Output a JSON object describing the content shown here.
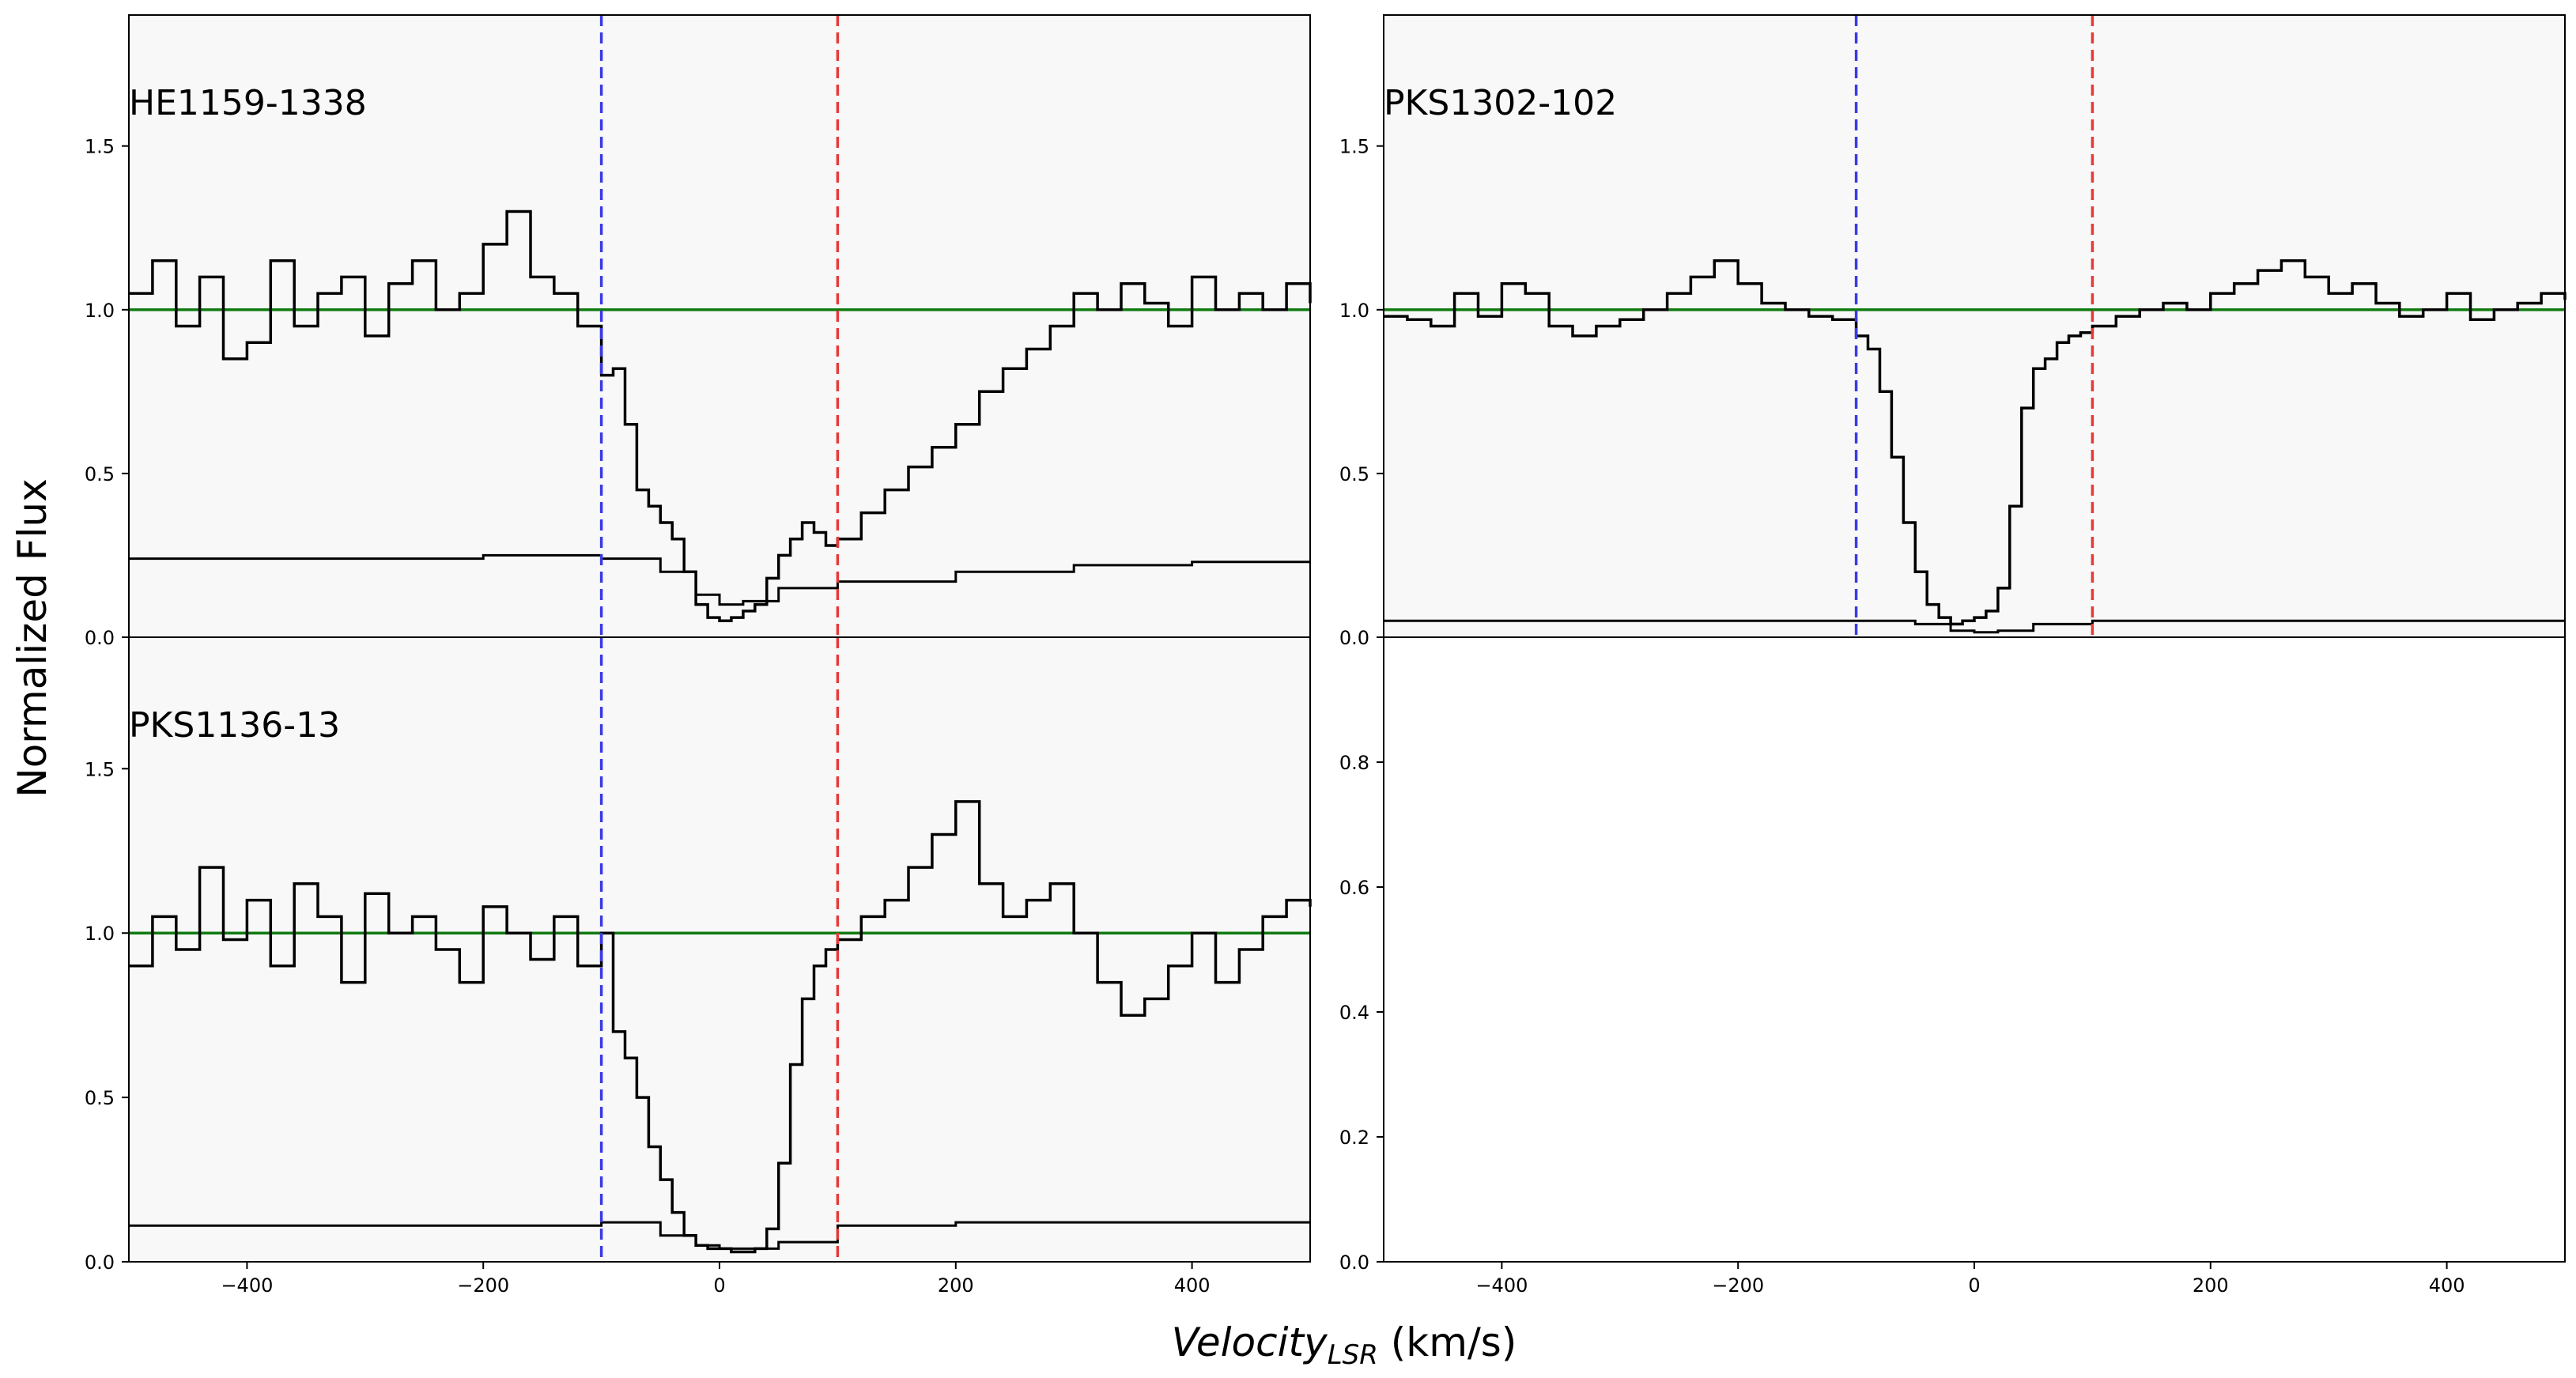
{
  "figure": {
    "ylabel": "Normalized Flux",
    "xlabel_main": "Velocity",
    "xlabel_sub": "LSR",
    "xlabel_units": " (km/s)"
  },
  "colors": {
    "panel_bg": "#f8f8f8",
    "spectrum": "#000000",
    "continuum": "#107a10",
    "vline_min": "#3a3ae6",
    "vline_max": "#e63a3a"
  },
  "chart_data": [
    {
      "type": "line",
      "title": "HE1159-1338",
      "xlim": [
        -500,
        500
      ],
      "ylim": [
        0,
        1.9
      ],
      "yticks": [
        0.0,
        0.5,
        1.0,
        1.5
      ],
      "ytick_labels": [
        "0.0",
        "0.5",
        "1.0",
        "1.5"
      ],
      "xticks": [
        -400,
        -200,
        0,
        200,
        400
      ],
      "xtick_labels": [
        "−400",
        "−200",
        "0",
        "200",
        "400"
      ],
      "continuum": 1.0,
      "vlines": [
        -100,
        100
      ],
      "series": [
        {
          "role": "flux",
          "x": [
            -500,
            -480,
            -460,
            -440,
            -420,
            -400,
            -380,
            -360,
            -340,
            -320,
            -300,
            -280,
            -260,
            -240,
            -220,
            -200,
            -180,
            -160,
            -140,
            -120,
            -100,
            -90,
            -80,
            -70,
            -60,
            -50,
            -40,
            -30,
            -20,
            -10,
            0,
            10,
            20,
            30,
            40,
            50,
            60,
            70,
            80,
            90,
            100,
            120,
            140,
            160,
            180,
            200,
            220,
            240,
            260,
            280,
            300,
            320,
            340,
            360,
            380,
            400,
            420,
            440,
            460,
            480,
            500
          ],
          "y": [
            1.05,
            1.15,
            0.95,
            1.1,
            0.85,
            0.9,
            1.15,
            0.95,
            1.05,
            1.1,
            0.92,
            1.08,
            1.15,
            1.0,
            1.05,
            1.2,
            1.3,
            1.1,
            1.05,
            0.95,
            0.8,
            0.82,
            0.65,
            0.45,
            0.4,
            0.35,
            0.3,
            0.2,
            0.1,
            0.06,
            0.05,
            0.06,
            0.08,
            0.1,
            0.18,
            0.25,
            0.3,
            0.35,
            0.32,
            0.28,
            0.3,
            0.38,
            0.45,
            0.52,
            0.58,
            0.65,
            0.75,
            0.82,
            0.88,
            0.95,
            1.05,
            1.0,
            1.08,
            1.02,
            0.95,
            1.1,
            1.0,
            1.05,
            1.0,
            1.08,
            1.02
          ]
        },
        {
          "role": "error",
          "x": [
            -500,
            -400,
            -300,
            -200,
            -100,
            -50,
            -20,
            0,
            20,
            50,
            100,
            200,
            300,
            400,
            500
          ],
          "y": [
            0.24,
            0.24,
            0.24,
            0.25,
            0.24,
            0.2,
            0.13,
            0.1,
            0.11,
            0.15,
            0.17,
            0.2,
            0.22,
            0.23,
            0.23
          ]
        }
      ]
    },
    {
      "type": "line",
      "title": "PKS1302-102",
      "xlim": [
        -500,
        500
      ],
      "ylim": [
        0,
        1.9
      ],
      "yticks": [
        0.0,
        0.5,
        1.0,
        1.5
      ],
      "ytick_labels": [
        "0.0",
        "0.5",
        "1.0",
        "1.5"
      ],
      "xticks": [],
      "xtick_labels": [],
      "continuum": 1.0,
      "vlines": [
        -100,
        100
      ],
      "series": [
        {
          "role": "flux",
          "x": [
            -500,
            -480,
            -460,
            -440,
            -420,
            -400,
            -380,
            -360,
            -340,
            -320,
            -300,
            -280,
            -260,
            -240,
            -220,
            -200,
            -180,
            -160,
            -140,
            -120,
            -100,
            -90,
            -80,
            -70,
            -60,
            -50,
            -40,
            -30,
            -20,
            -10,
            0,
            10,
            20,
            30,
            40,
            50,
            60,
            70,
            80,
            90,
            100,
            120,
            140,
            160,
            180,
            200,
            220,
            240,
            260,
            280,
            300,
            320,
            340,
            360,
            380,
            400,
            420,
            440,
            460,
            480,
            500
          ],
          "y": [
            0.98,
            0.97,
            0.95,
            1.05,
            0.98,
            1.08,
            1.05,
            0.95,
            0.92,
            0.95,
            0.97,
            1.0,
            1.05,
            1.1,
            1.15,
            1.08,
            1.02,
            1.0,
            0.98,
            0.97,
            0.92,
            0.88,
            0.75,
            0.55,
            0.35,
            0.2,
            0.1,
            0.06,
            0.04,
            0.05,
            0.06,
            0.08,
            0.15,
            0.4,
            0.7,
            0.82,
            0.85,
            0.9,
            0.92,
            0.93,
            0.95,
            0.98,
            1.0,
            1.02,
            1.0,
            1.05,
            1.08,
            1.12,
            1.15,
            1.1,
            1.05,
            1.08,
            1.02,
            0.98,
            1.0,
            1.05,
            0.97,
            1.0,
            1.02,
            1.05,
            1.03
          ]
        },
        {
          "role": "error",
          "x": [
            -500,
            -300,
            -100,
            -50,
            -20,
            0,
            20,
            50,
            100,
            300,
            500
          ],
          "y": [
            0.05,
            0.05,
            0.05,
            0.04,
            0.02,
            0.015,
            0.02,
            0.04,
            0.05,
            0.05,
            0.05
          ]
        }
      ]
    },
    {
      "type": "line",
      "title": "PKS1136-13",
      "xlim": [
        -500,
        500
      ],
      "ylim": [
        0,
        1.9
      ],
      "yticks": [
        0.0,
        0.5,
        1.0,
        1.5
      ],
      "ytick_labels": [
        "0.0",
        "0.5",
        "1.0",
        "1.5"
      ],
      "xticks": [
        -400,
        -200,
        0,
        200,
        400
      ],
      "xtick_labels": [
        "−400",
        "−200",
        "0",
        "200",
        "400"
      ],
      "continuum": 1.0,
      "vlines": [
        -100,
        100
      ],
      "series": [
        {
          "role": "flux",
          "x": [
            -500,
            -480,
            -460,
            -440,
            -420,
            -400,
            -380,
            -360,
            -340,
            -320,
            -300,
            -280,
            -260,
            -240,
            -220,
            -200,
            -180,
            -160,
            -140,
            -120,
            -100,
            -90,
            -80,
            -70,
            -60,
            -50,
            -40,
            -30,
            -20,
            -10,
            0,
            10,
            20,
            30,
            40,
            50,
            60,
            70,
            80,
            90,
            100,
            120,
            140,
            160,
            180,
            200,
            220,
            240,
            260,
            280,
            300,
            320,
            340,
            360,
            380,
            400,
            420,
            440,
            460,
            480,
            500
          ],
          "y": [
            0.9,
            1.05,
            0.95,
            1.2,
            0.98,
            1.1,
            0.9,
            1.15,
            1.05,
            0.85,
            1.12,
            1.0,
            1.05,
            0.95,
            0.85,
            1.08,
            1.0,
            0.92,
            1.05,
            0.9,
            1.0,
            0.7,
            0.62,
            0.5,
            0.35,
            0.25,
            0.15,
            0.08,
            0.05,
            0.04,
            0.04,
            0.03,
            0.03,
            0.04,
            0.1,
            0.3,
            0.6,
            0.8,
            0.9,
            0.95,
            0.98,
            1.05,
            1.1,
            1.2,
            1.3,
            1.4,
            1.15,
            1.05,
            1.1,
            1.15,
            1.0,
            0.85,
            0.75,
            0.8,
            0.9,
            1.0,
            0.85,
            0.95,
            1.05,
            1.1,
            1.08
          ]
        },
        {
          "role": "error",
          "x": [
            -500,
            -300,
            -100,
            -50,
            -20,
            0,
            20,
            50,
            100,
            200,
            300,
            400,
            500
          ],
          "y": [
            0.11,
            0.11,
            0.12,
            0.08,
            0.05,
            0.04,
            0.04,
            0.06,
            0.11,
            0.12,
            0.12,
            0.12,
            0.12
          ]
        }
      ]
    },
    {
      "type": "line",
      "title": "",
      "xlim": [
        -500,
        500
      ],
      "ylim": [
        0,
        1.0
      ],
      "yticks": [
        0.0,
        0.2,
        0.4,
        0.6,
        0.8
      ],
      "ytick_labels": [
        "0.0",
        "0.2",
        "0.4",
        "0.6",
        "0.8"
      ],
      "xticks": [
        -400,
        -200,
        0,
        200,
        400
      ],
      "xtick_labels": [
        "−400",
        "−200",
        "0",
        "200",
        "400"
      ],
      "series": []
    }
  ]
}
